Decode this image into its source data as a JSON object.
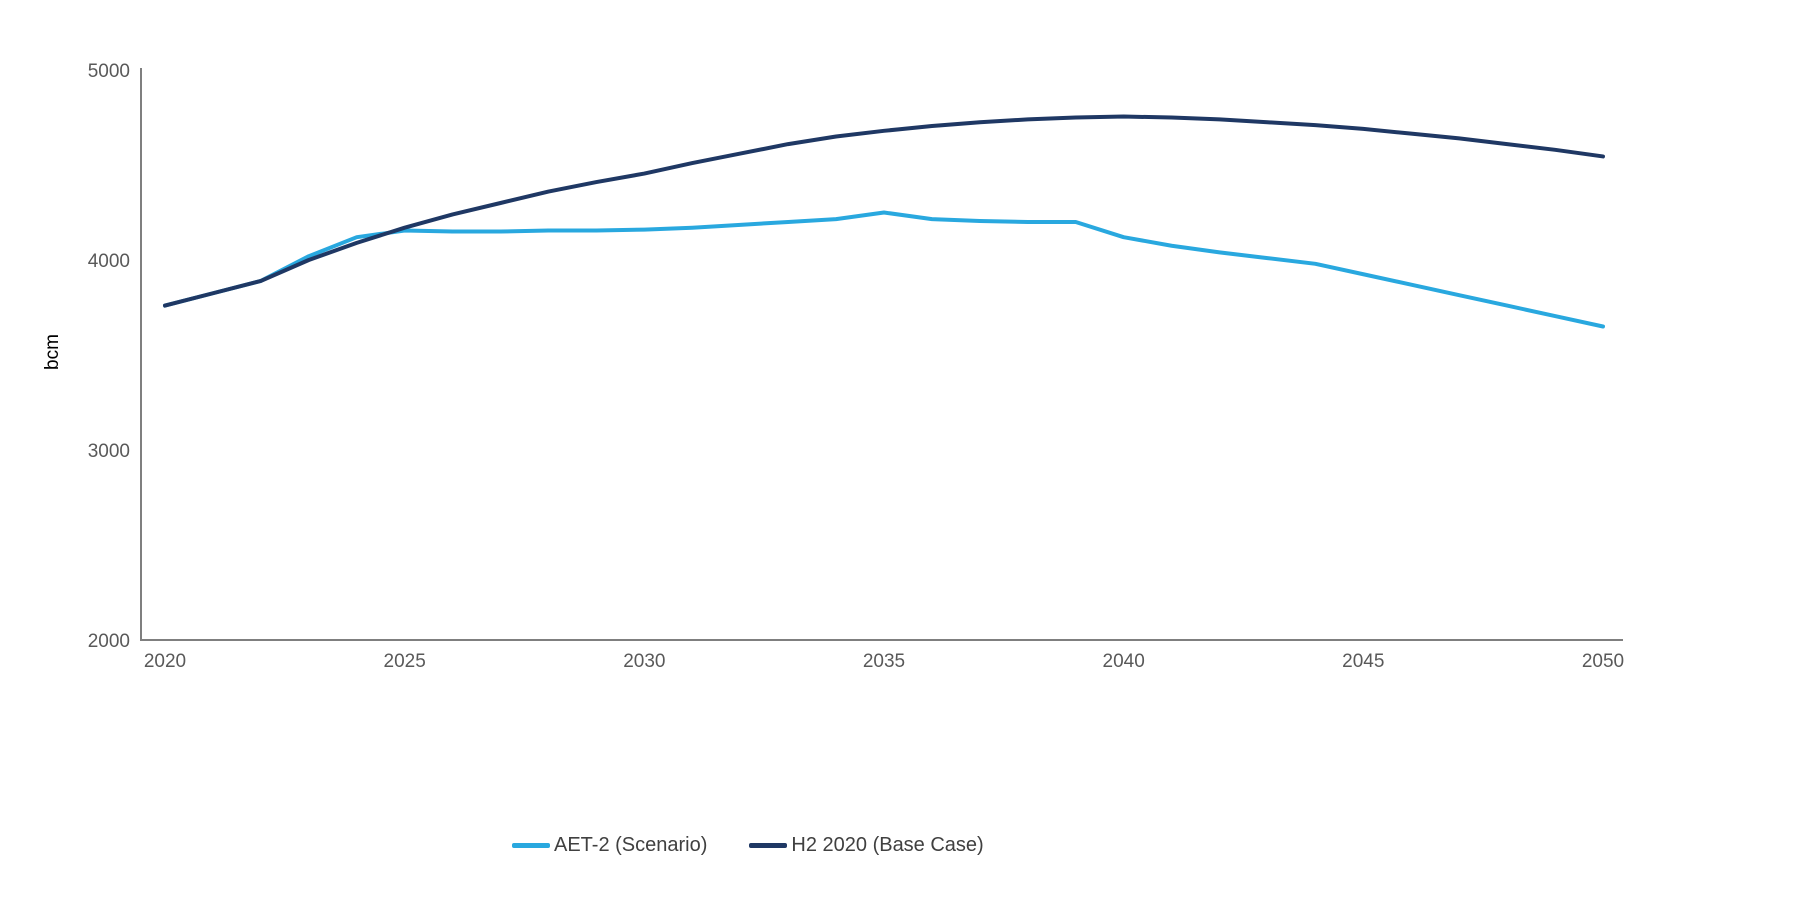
{
  "page": {
    "background": "#FFFFFF"
  },
  "chart_data": {
    "type": "line",
    "title": "",
    "xlabel": "",
    "ylabel": "bcm",
    "ylim": [
      2000,
      5000
    ],
    "yticks": [
      2000,
      3000,
      4000,
      5000
    ],
    "xticks": [
      2020,
      2025,
      2030,
      2035,
      2040,
      2045,
      2050
    ],
    "grid": false,
    "legend_position": "bottom-center",
    "axis_color": "#7F7F7F",
    "tick_label_color": "#595959",
    "legend_text_color": "#404040",
    "x": [
      2020,
      2021,
      2022,
      2023,
      2024,
      2025,
      2026,
      2027,
      2028,
      2029,
      2030,
      2031,
      2032,
      2033,
      2034,
      2035,
      2036,
      2037,
      2038,
      2039,
      2040,
      2041,
      2042,
      2043,
      2044,
      2045,
      2046,
      2047,
      2048,
      2049,
      2050
    ],
    "series": [
      {
        "name": "AET-2 (Scenario)",
        "color": "#29A8DF",
        "values": [
          3760,
          3825,
          3890,
          4020,
          4120,
          4155,
          4150,
          4150,
          4155,
          4155,
          4160,
          4170,
          4185,
          4200,
          4215,
          4250,
          4215,
          4205,
          4200,
          4200,
          4120,
          4075,
          4040,
          4010,
          3980,
          3925,
          3870,
          3815,
          3760,
          3705,
          3650
        ]
      },
      {
        "name": "H2 2020 (Base Case)",
        "color": "#1F3864",
        "values": [
          3760,
          3825,
          3890,
          4000,
          4090,
          4170,
          4240,
          4300,
          4360,
          4410,
          4455,
          4510,
          4560,
          4610,
          4650,
          4680,
          4705,
          4725,
          4740,
          4750,
          4755,
          4750,
          4740,
          4725,
          4710,
          4690,
          4665,
          4640,
          4610,
          4580,
          4545
        ]
      }
    ]
  }
}
